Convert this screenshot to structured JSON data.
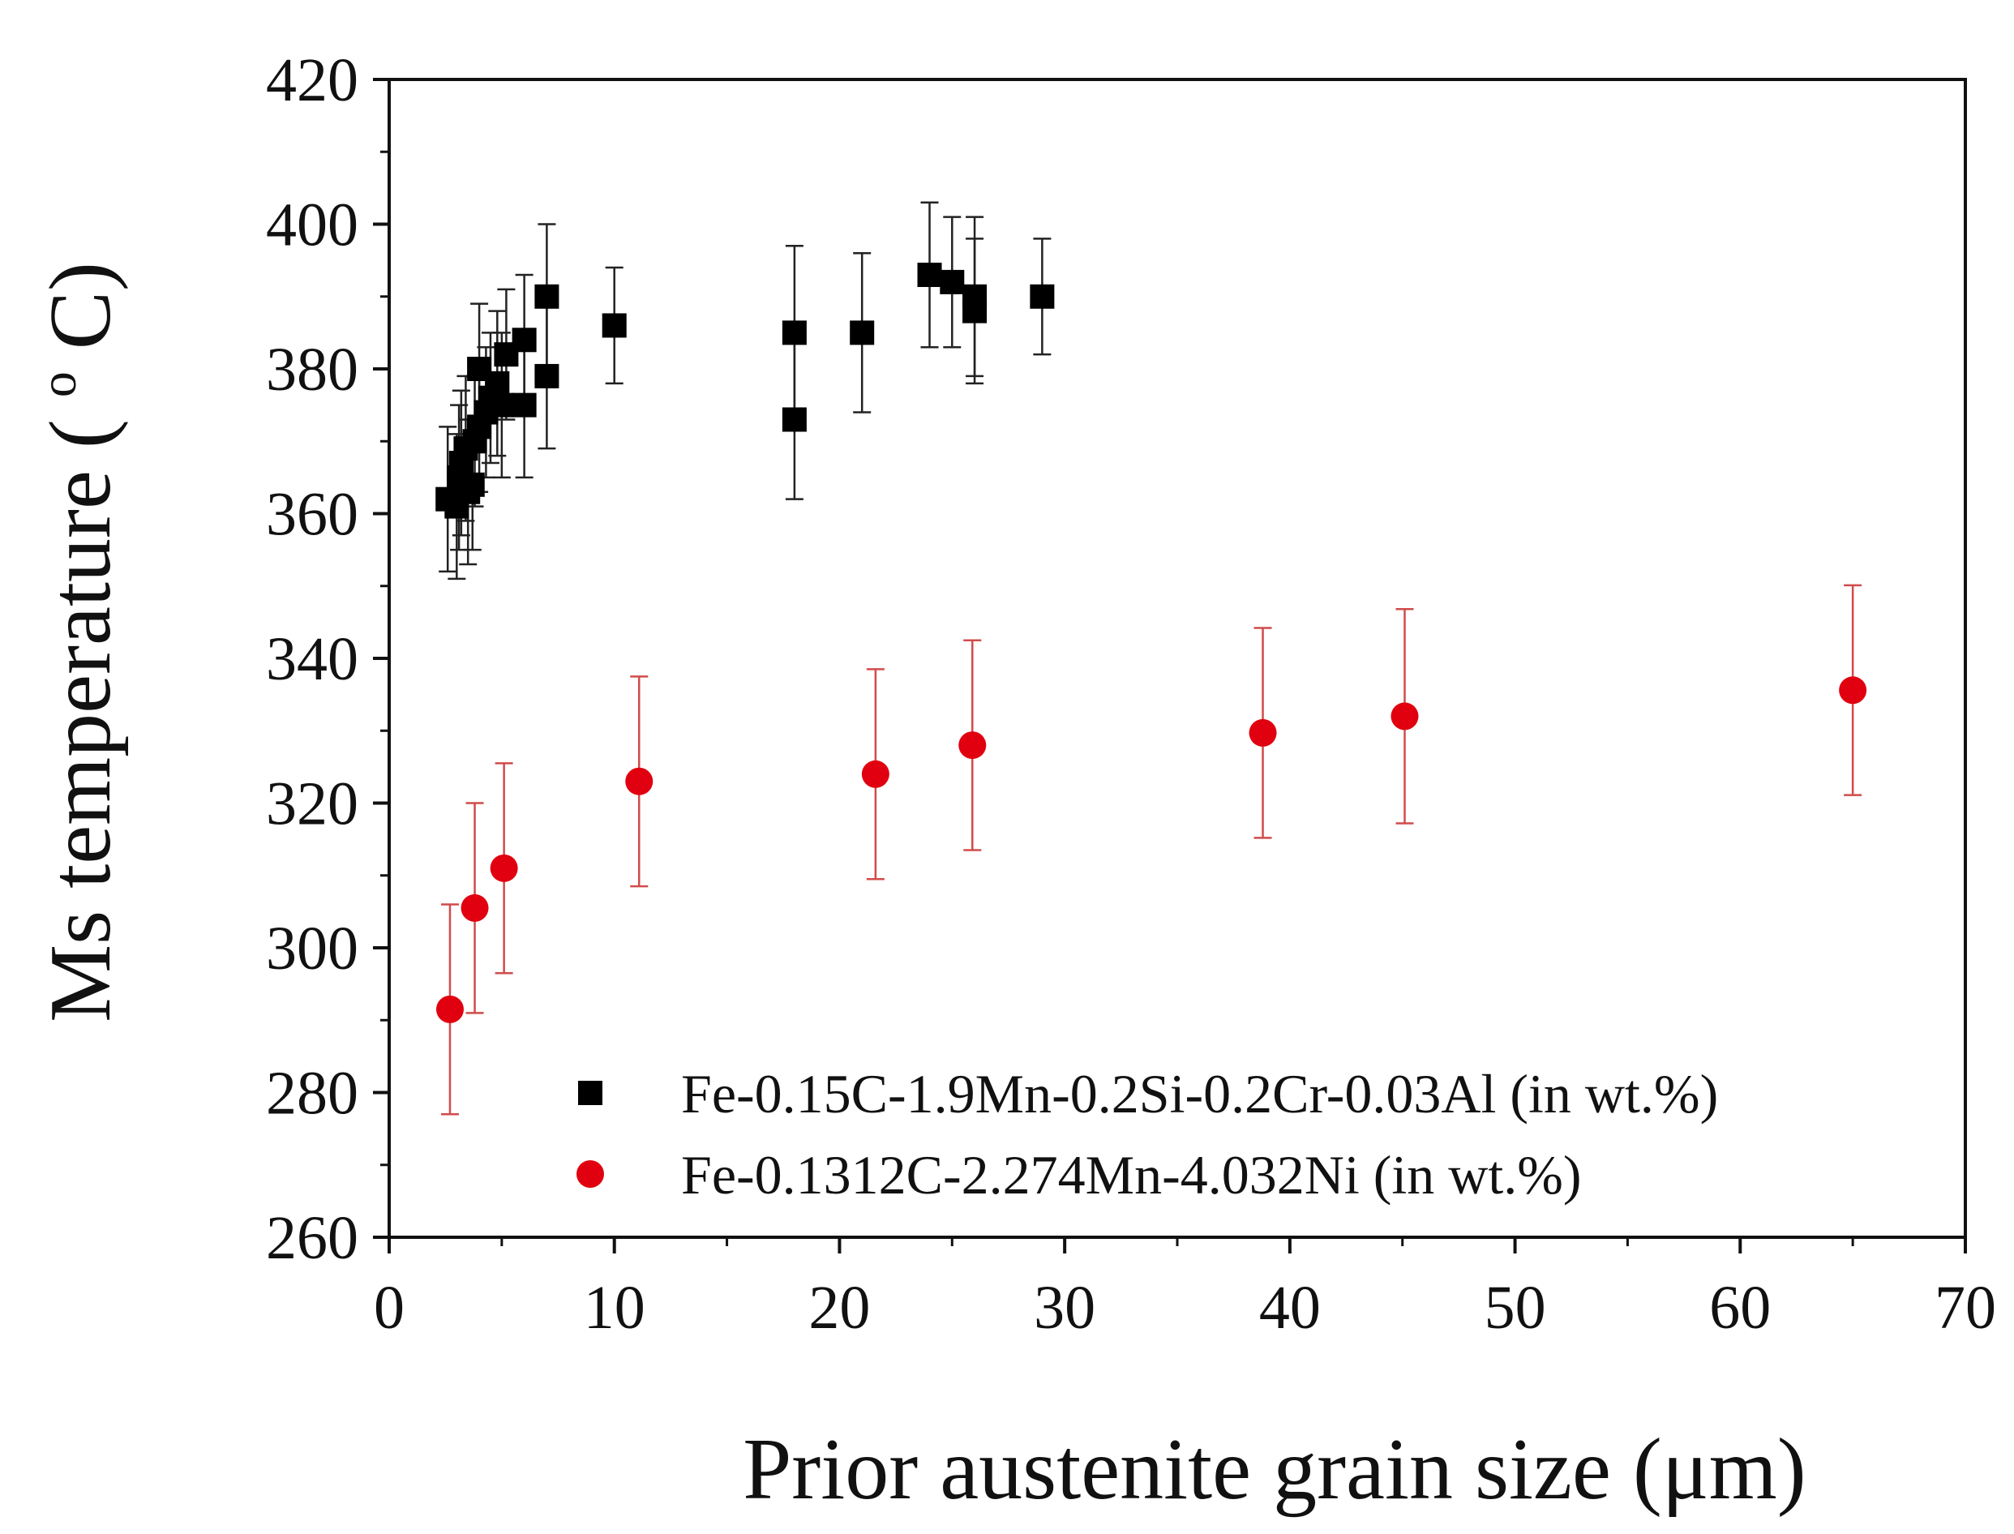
{
  "chart_data": {
    "type": "scatter",
    "title": "",
    "xlabel": "Prior austenite grain size (μm)",
    "ylabel_parts": {
      "before": "Ms temperature (",
      "superscript": "o",
      "after": "C)"
    },
    "xlim": [
      0,
      70
    ],
    "ylim": [
      260,
      420
    ],
    "x_ticks": [
      0,
      10,
      20,
      30,
      40,
      50,
      60,
      70
    ],
    "y_ticks": [
      260,
      280,
      300,
      320,
      340,
      360,
      380,
      400,
      420
    ],
    "x_minor_step": 5,
    "y_minor_step": 10,
    "grid": false,
    "legend_position": "bottom-right",
    "series": [
      {
        "name": "Fe-0.15C-1.9Mn-0.2Si-0.2Cr-0.03Al (in wt.%)",
        "marker": "square",
        "color": "#000000",
        "error_color": "#222222",
        "points": [
          {
            "x": 2.6,
            "y": 362,
            "err": 10
          },
          {
            "x": 3.0,
            "y": 361,
            "err": 10
          },
          {
            "x": 3.1,
            "y": 365,
            "err": 10
          },
          {
            "x": 3.2,
            "y": 367,
            "err": 10
          },
          {
            "x": 3.4,
            "y": 369,
            "err": 10
          },
          {
            "x": 3.5,
            "y": 363,
            "err": 10
          },
          {
            "x": 3.7,
            "y": 364,
            "err": 9
          },
          {
            "x": 3.8,
            "y": 370,
            "err": 9
          },
          {
            "x": 4.0,
            "y": 372,
            "err": 9
          },
          {
            "x": 4.0,
            "y": 380,
            "err": 9
          },
          {
            "x": 4.3,
            "y": 374,
            "err": 9
          },
          {
            "x": 4.5,
            "y": 376,
            "err": 9
          },
          {
            "x": 4.8,
            "y": 378,
            "err": 10
          },
          {
            "x": 5.0,
            "y": 375,
            "err": 10
          },
          {
            "x": 5.2,
            "y": 382,
            "err": 9
          },
          {
            "x": 6.0,
            "y": 375,
            "err": 10
          },
          {
            "x": 6.0,
            "y": 384,
            "err": 9
          },
          {
            "x": 7.0,
            "y": 379,
            "err": 10
          },
          {
            "x": 7.0,
            "y": 390,
            "err": 10
          },
          {
            "x": 10.0,
            "y": 386,
            "err": 8
          },
          {
            "x": 18.0,
            "y": 385,
            "err": 12
          },
          {
            "x": 18.0,
            "y": 373,
            "err": 11
          },
          {
            "x": 21.0,
            "y": 385,
            "err": 11
          },
          {
            "x": 24.0,
            "y": 393,
            "err": 10
          },
          {
            "x": 25.0,
            "y": 392,
            "err": 9
          },
          {
            "x": 26.0,
            "y": 390,
            "err": 11
          },
          {
            "x": 26.0,
            "y": 388,
            "err": 10
          },
          {
            "x": 29.0,
            "y": 390,
            "err": 8
          }
        ]
      },
      {
        "name": "Fe-0.1312C-2.274Mn-4.032Ni (in wt.%)",
        "marker": "circle",
        "color": "#e0000f",
        "error_color": "#d14b4b",
        "points": [
          {
            "x": 2.7,
            "y": 291.5,
            "err": 14.5
          },
          {
            "x": 3.8,
            "y": 305.5,
            "err": 14.5
          },
          {
            "x": 5.1,
            "y": 311,
            "err": 14.5
          },
          {
            "x": 11.1,
            "y": 323,
            "err": 14.5
          },
          {
            "x": 21.6,
            "y": 324,
            "err": 14.5
          },
          {
            "x": 25.9,
            "y": 328,
            "err": 14.5
          },
          {
            "x": 38.8,
            "y": 329.7,
            "err": 14.5
          },
          {
            "x": 45.1,
            "y": 332,
            "err": 14.8
          },
          {
            "x": 65.0,
            "y": 335.6,
            "err": 14.5
          }
        ]
      }
    ]
  }
}
